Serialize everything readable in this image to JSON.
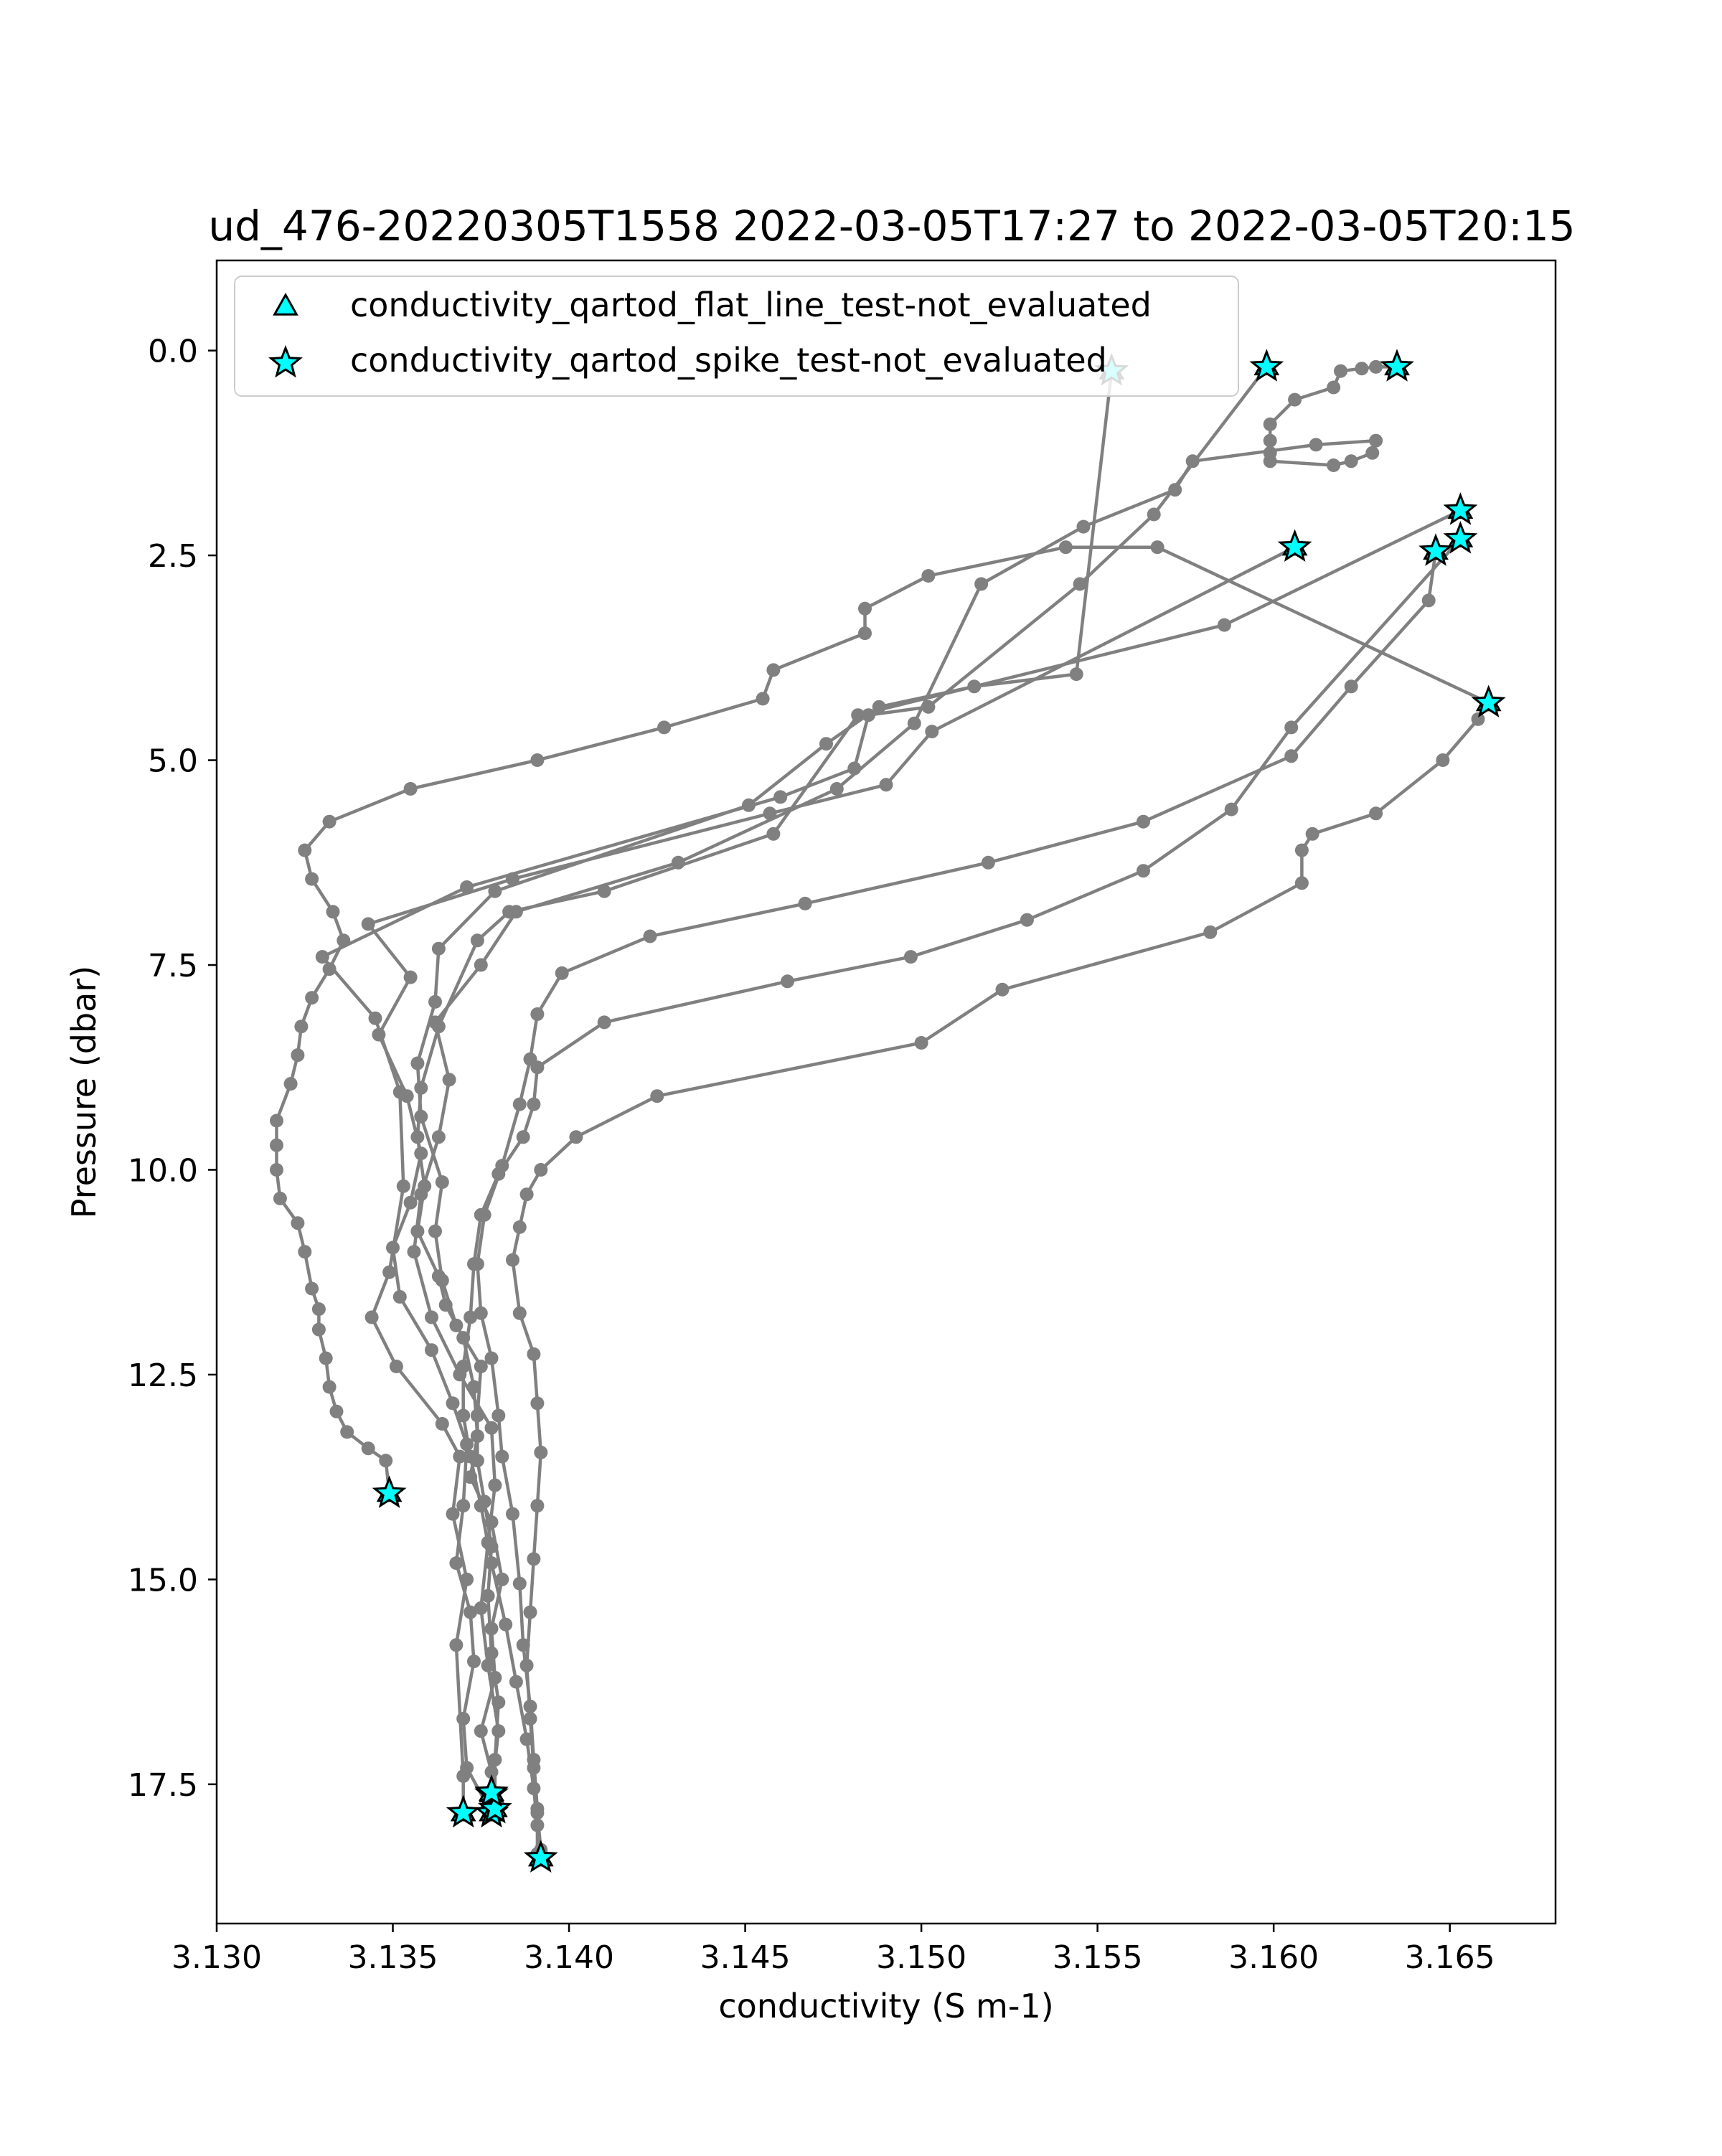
{
  "chart_data": {
    "type": "scatter",
    "title": "ud_476-20220305T1558 2022-03-05T17:27 to 2022-03-05T20:15",
    "xlabel": "conductivity (S m-1)",
    "ylabel": "Pressure (dbar)",
    "xlim": [
      3.13,
      3.168
    ],
    "ylim": [
      19.2,
      -1.1
    ],
    "y_inverted": true,
    "grid": false,
    "legend_position": "upper-left",
    "xticks": [
      "3.130",
      "3.135",
      "3.140",
      "3.145",
      "3.150",
      "3.155",
      "3.160",
      "3.165"
    ],
    "xtick_values": [
      3.13,
      3.135,
      3.14,
      3.145,
      3.15,
      3.155,
      3.16,
      3.165
    ],
    "yticks": [
      "0.0",
      "2.5",
      "5.0",
      "7.5",
      "10.0",
      "12.5",
      "15.0",
      "17.5"
    ],
    "ytick_values": [
      0,
      2.5,
      5,
      7.5,
      10,
      12.5,
      15,
      17.5
    ],
    "colors": {
      "line": "#808080",
      "marker": "#808080",
      "flag_fill": "#00ffff",
      "flag_edge": "#000000",
      "axes": "#000000"
    },
    "legend": [
      {
        "label": "conductivity_qartod_flat_line_test-not_evaluated",
        "marker": "triangle"
      },
      {
        "label": "conductivity_qartod_spike_test-not_evaluated",
        "marker": "star"
      }
    ],
    "series": [
      {
        "points": [
          [
            3.1349,
            13.95
          ],
          [
            3.1348,
            13.55
          ],
          [
            3.1343,
            13.4
          ],
          [
            3.1337,
            13.2
          ],
          [
            3.1334,
            12.95
          ],
          [
            3.1332,
            12.65
          ],
          [
            3.1331,
            12.3
          ],
          [
            3.1329,
            11.95
          ],
          [
            3.1329,
            11.7
          ],
          [
            3.1327,
            11.45
          ],
          [
            3.1325,
            11.0
          ],
          [
            3.1323,
            10.65
          ],
          [
            3.1318,
            10.35
          ],
          [
            3.1317,
            10.0
          ],
          [
            3.1317,
            9.7
          ],
          [
            3.1317,
            9.4
          ],
          [
            3.1321,
            8.95
          ],
          [
            3.1323,
            8.6
          ],
          [
            3.1324,
            8.25
          ],
          [
            3.1327,
            7.9
          ],
          [
            3.1332,
            7.55
          ],
          [
            3.1336,
            7.2
          ],
          [
            3.1333,
            6.85
          ],
          [
            3.1327,
            6.45
          ],
          [
            3.1325,
            6.1
          ],
          [
            3.1332,
            5.75
          ],
          [
            3.1355,
            5.35
          ],
          [
            3.1391,
            5.0
          ],
          [
            3.1427,
            4.6
          ],
          [
            3.1455,
            4.25
          ],
          [
            3.1458,
            3.9
          ],
          [
            3.1484,
            3.45
          ],
          [
            3.1484,
            3.15
          ],
          [
            3.1502,
            2.75
          ],
          [
            3.1541,
            2.4
          ],
          [
            3.1567,
            2.4
          ],
          [
            3.1661,
            4.3
          ]
        ],
        "flags": [
          0,
          36
        ]
      },
      {
        "points": [
          [
            3.1653,
            1.95
          ],
          [
            3.1586,
            3.35
          ],
          [
            3.1482,
            4.45
          ],
          [
            3.1458,
            5.9
          ],
          [
            3.141,
            6.6
          ],
          [
            3.1383,
            6.85
          ],
          [
            3.1374,
            7.2
          ],
          [
            3.1363,
            8.25
          ],
          [
            3.1358,
            9.0
          ],
          [
            3.1357,
            9.6
          ],
          [
            3.1359,
            10.2
          ],
          [
            3.1357,
            10.75
          ],
          [
            3.1363,
            11.3
          ],
          [
            3.1365,
            11.65
          ],
          [
            3.137,
            12.05
          ],
          [
            3.1373,
            12.65
          ],
          [
            3.1374,
            13.25
          ],
          [
            3.1372,
            13.75
          ],
          [
            3.1378,
            14.3
          ],
          [
            3.1381,
            15.0
          ],
          [
            3.1378,
            15.6
          ],
          [
            3.1379,
            16.2
          ],
          [
            3.1375,
            16.85
          ],
          [
            3.1378,
            17.35
          ],
          [
            3.1378,
            17.62
          ]
        ],
        "flags": [
          0,
          24
        ]
      },
      {
        "points": [
          [
            3.1606,
            2.4
          ],
          [
            3.1503,
            4.65
          ],
          [
            3.149,
            5.3
          ],
          [
            3.1457,
            5.65
          ],
          [
            3.1384,
            6.45
          ],
          [
            3.1343,
            7.0
          ],
          [
            3.1355,
            7.65
          ],
          [
            3.1346,
            8.35
          ],
          [
            3.1354,
            9.1
          ],
          [
            3.1358,
            9.8
          ],
          [
            3.1355,
            10.4
          ],
          [
            3.135,
            10.95
          ],
          [
            3.1352,
            11.55
          ],
          [
            3.1361,
            12.2
          ],
          [
            3.1367,
            12.85
          ],
          [
            3.1371,
            13.35
          ],
          [
            3.137,
            14.1
          ],
          [
            3.1368,
            14.8
          ],
          [
            3.1372,
            15.4
          ],
          [
            3.1373,
            16.0
          ],
          [
            3.137,
            16.7
          ],
          [
            3.1371,
            17.3
          ],
          [
            3.1378,
            17.85
          ]
        ],
        "flags": [
          0,
          22
        ]
      },
      {
        "points": [
          [
            3.1598,
            0.2
          ],
          [
            3.1566,
            2.0
          ],
          [
            3.1545,
            2.85
          ],
          [
            3.1502,
            4.35
          ],
          [
            3.1485,
            4.45
          ],
          [
            3.1481,
            5.1
          ],
          [
            3.146,
            5.45
          ],
          [
            3.1371,
            6.55
          ],
          [
            3.133,
            7.4
          ],
          [
            3.1345,
            8.15
          ],
          [
            3.1352,
            9.05
          ],
          [
            3.1353,
            10.2
          ],
          [
            3.1349,
            11.25
          ],
          [
            3.1344,
            11.8
          ],
          [
            3.1351,
            12.4
          ],
          [
            3.1364,
            13.1
          ],
          [
            3.1369,
            13.5
          ],
          [
            3.1367,
            14.2
          ],
          [
            3.1371,
            15.0
          ],
          [
            3.1368,
            15.8
          ],
          [
            3.137,
            17.4
          ],
          [
            3.137,
            17.85
          ]
        ],
        "flags": [
          0,
          21
        ]
      },
      {
        "points": [
          [
            3.1554,
            0.25
          ],
          [
            3.1544,
            3.95
          ],
          [
            3.1515,
            4.1
          ],
          [
            3.1488,
            4.35
          ],
          [
            3.1473,
            4.8
          ],
          [
            3.1451,
            5.55
          ],
          [
            3.1379,
            6.6
          ],
          [
            3.1363,
            7.3
          ],
          [
            3.1362,
            7.95
          ],
          [
            3.1357,
            8.7
          ],
          [
            3.1358,
            9.35
          ],
          [
            3.1364,
            10.15
          ],
          [
            3.1362,
            10.75
          ],
          [
            3.1364,
            11.35
          ],
          [
            3.1368,
            11.9
          ],
          [
            3.1375,
            12.4
          ],
          [
            3.1374,
            13.0
          ],
          [
            3.1374,
            13.55
          ],
          [
            3.1376,
            14.05
          ],
          [
            3.1378,
            14.6
          ],
          [
            3.1377,
            15.2
          ],
          [
            3.1378,
            15.9
          ],
          [
            3.138,
            16.5
          ],
          [
            3.1379,
            17.2
          ],
          [
            3.1379,
            17.8
          ]
        ],
        "flags": [
          0,
          24
        ]
      },
      {
        "points": [
          [
            3.1635,
            0.2
          ],
          [
            3.1629,
            0.2
          ],
          [
            3.1625,
            0.22
          ],
          [
            3.1619,
            0.25
          ],
          [
            3.1617,
            0.45
          ],
          [
            3.1606,
            0.6
          ],
          [
            3.1599,
            0.9
          ],
          [
            3.1599,
            1.1
          ],
          [
            3.1599,
            1.25
          ],
          [
            3.1599,
            1.35
          ],
          [
            3.1617,
            1.4
          ],
          [
            3.1622,
            1.35
          ],
          [
            3.1628,
            1.25
          ],
          [
            3.1629,
            1.1
          ],
          [
            3.1612,
            1.15
          ],
          [
            3.1577,
            1.35
          ],
          [
            3.1572,
            1.7
          ],
          [
            3.1546,
            2.15
          ],
          [
            3.1517,
            2.85
          ],
          [
            3.1498,
            4.55
          ],
          [
            3.1476,
            5.35
          ],
          [
            3.1431,
            6.25
          ],
          [
            3.1385,
            6.85
          ],
          [
            3.1375,
            7.5
          ],
          [
            3.1362,
            8.2
          ],
          [
            3.1366,
            8.9
          ],
          [
            3.1363,
            9.6
          ],
          [
            3.1358,
            10.3
          ],
          [
            3.1356,
            11.0
          ],
          [
            3.1361,
            11.8
          ],
          [
            3.1369,
            12.5
          ],
          [
            3.1378,
            13.15
          ],
          [
            3.1379,
            13.85
          ],
          [
            3.1377,
            14.55
          ],
          [
            3.1375,
            15.35
          ],
          [
            3.1377,
            16.05
          ],
          [
            3.138,
            16.85
          ],
          [
            3.1378,
            17.6
          ]
        ],
        "flags": [
          0,
          37
        ]
      },
      {
        "points": [
          [
            3.1653,
            2.3
          ],
          [
            3.1605,
            4.6
          ],
          [
            3.1588,
            5.6
          ],
          [
            3.1563,
            6.35
          ],
          [
            3.153,
            6.95
          ],
          [
            3.1497,
            7.4
          ],
          [
            3.1462,
            7.7
          ],
          [
            3.141,
            8.2
          ],
          [
            3.1391,
            8.75
          ],
          [
            3.139,
            9.2
          ],
          [
            3.1387,
            9.6
          ],
          [
            3.138,
            10.05
          ],
          [
            3.1375,
            10.55
          ],
          [
            3.1373,
            11.15
          ],
          [
            3.1372,
            11.8
          ],
          [
            3.137,
            12.4
          ],
          [
            3.137,
            13.0
          ],
          [
            3.1372,
            13.5
          ],
          [
            3.1375,
            14.1
          ],
          [
            3.1378,
            14.8
          ],
          [
            3.1382,
            15.55
          ],
          [
            3.1385,
            16.25
          ],
          [
            3.1388,
            16.95
          ],
          [
            3.139,
            17.55
          ],
          [
            3.1391,
            18.0
          ],
          [
            3.1392,
            18.4
          ]
        ],
        "flags": [
          0,
          25
        ]
      },
      {
        "points": [
          [
            3.1646,
            2.45
          ],
          [
            3.1644,
            3.05
          ],
          [
            3.1622,
            4.1
          ],
          [
            3.1605,
            4.95
          ],
          [
            3.1563,
            5.75
          ],
          [
            3.1519,
            6.25
          ],
          [
            3.1467,
            6.75
          ],
          [
            3.1423,
            7.15
          ],
          [
            3.1398,
            7.6
          ],
          [
            3.1391,
            8.1
          ],
          [
            3.1389,
            8.65
          ],
          [
            3.1386,
            9.2
          ],
          [
            3.1381,
            9.95
          ],
          [
            3.1376,
            10.55
          ],
          [
            3.1374,
            11.15
          ],
          [
            3.1375,
            11.75
          ],
          [
            3.1378,
            12.3
          ],
          [
            3.138,
            13.0
          ],
          [
            3.1381,
            13.5
          ],
          [
            3.1384,
            14.2
          ],
          [
            3.1386,
            15.05
          ],
          [
            3.1387,
            15.8
          ],
          [
            3.1389,
            16.55
          ],
          [
            3.139,
            17.2
          ],
          [
            3.1391,
            17.8
          ],
          [
            3.1391,
            18.35
          ]
        ],
        "flags": [
          0
        ]
      },
      {
        "points": [
          [
            3.1658,
            4.5
          ],
          [
            3.1648,
            5.0
          ],
          [
            3.1629,
            5.65
          ],
          [
            3.1611,
            5.9
          ],
          [
            3.1608,
            6.1
          ],
          [
            3.1608,
            6.5
          ],
          [
            3.1582,
            7.1
          ],
          [
            3.1523,
            7.8
          ],
          [
            3.15,
            8.45
          ],
          [
            3.1425,
            9.1
          ],
          [
            3.1402,
            9.6
          ],
          [
            3.1392,
            10.0
          ],
          [
            3.1388,
            10.3
          ],
          [
            3.1386,
            10.7
          ],
          [
            3.1384,
            11.1
          ],
          [
            3.1386,
            11.75
          ],
          [
            3.139,
            12.25
          ],
          [
            3.1391,
            12.85
          ],
          [
            3.1392,
            13.45
          ],
          [
            3.1391,
            14.1
          ],
          [
            3.139,
            14.75
          ],
          [
            3.1389,
            15.4
          ],
          [
            3.1388,
            16.05
          ],
          [
            3.1389,
            16.7
          ],
          [
            3.139,
            17.3
          ],
          [
            3.1391,
            17.85
          ],
          [
            3.1392,
            18.3
          ]
        ],
        "flags": []
      }
    ]
  }
}
